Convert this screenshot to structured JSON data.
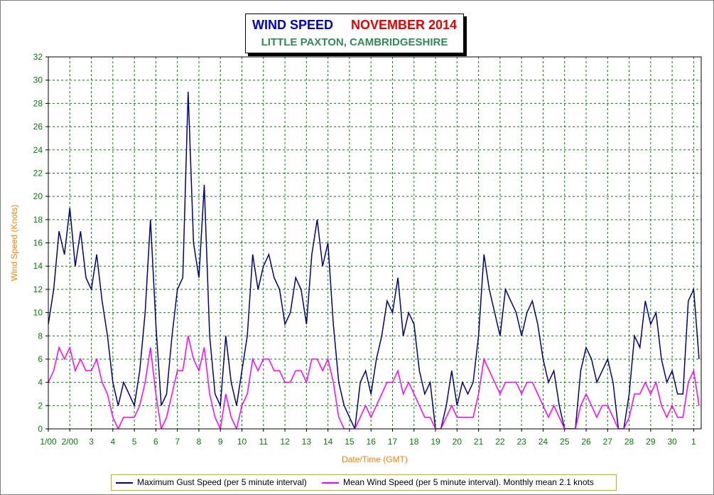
{
  "title": {
    "main": "WIND SPEED",
    "month": "NOVEMBER 2014",
    "location": "LITTLE PAXTON, CAMBRIDGESHIRE"
  },
  "colors": {
    "gust": "#000080",
    "mean": "#ff00ff",
    "grid": "#008000",
    "axis_label": "#ff8000",
    "tick_label": "#008000",
    "title_blue": "#0000cc",
    "title_red": "#e60000",
    "title_green": "#2e8b57"
  },
  "legend": {
    "gust": "Maximum Gust Speed (per 5 minute interval)",
    "mean": "Mean Wind Speed (per 5 minute interval). Monthly mean 2.1 knots"
  },
  "chart_data": {
    "type": "line",
    "xlabel": "Date/Time (GMT)",
    "ylabel": "Wind Speed (Knots)",
    "ylim": [
      0,
      32
    ],
    "y_ticks": [
      0,
      2,
      4,
      6,
      8,
      10,
      12,
      14,
      16,
      18,
      20,
      22,
      24,
      26,
      28,
      30,
      32
    ],
    "xlim": [
      1,
      31
    ],
    "x_tick_labels": [
      "1/00",
      "2/00",
      "3",
      "4",
      "5",
      "6",
      "7",
      "8",
      "9",
      "10",
      "11",
      "12",
      "13",
      "14",
      "15",
      "16",
      "17",
      "18",
      "19",
      "20",
      "21",
      "22",
      "23",
      "24",
      "25",
      "26",
      "27",
      "28",
      "29",
      "30",
      "1"
    ],
    "grid": true,
    "legend_position": "bottom",
    "series": [
      {
        "name": "Maximum Gust Speed (per 5 minute interval)",
        "x": [
          1.0,
          1.25,
          1.5,
          1.75,
          2.0,
          2.25,
          2.5,
          2.75,
          3.0,
          3.25,
          3.5,
          3.75,
          4.0,
          4.25,
          4.5,
          4.75,
          5.0,
          5.25,
          5.5,
          5.75,
          6.0,
          6.25,
          6.5,
          6.75,
          7.0,
          7.25,
          7.5,
          7.75,
          8.0,
          8.25,
          8.5,
          8.75,
          9.0,
          9.25,
          9.5,
          9.75,
          10.0,
          10.25,
          10.5,
          10.75,
          11.0,
          11.25,
          11.5,
          11.75,
          12.0,
          12.25,
          12.5,
          12.75,
          13.0,
          13.25,
          13.5,
          13.75,
          14.0,
          14.25,
          14.5,
          14.75,
          15.0,
          15.25,
          15.5,
          15.75,
          16.0,
          16.25,
          16.5,
          16.75,
          17.0,
          17.25,
          17.5,
          17.75,
          18.0,
          18.25,
          18.5,
          18.75,
          19.0,
          19.25,
          19.5,
          19.75,
          20.0,
          20.25,
          20.5,
          20.75,
          21.0,
          21.25,
          21.5,
          21.75,
          22.0,
          22.25,
          22.5,
          22.75,
          23.0,
          23.25,
          23.5,
          23.75,
          24.0,
          24.25,
          24.5,
          24.75,
          25.0,
          25.25,
          25.5,
          25.75,
          26.0,
          26.25,
          26.5,
          26.75,
          27.0,
          27.25,
          27.5,
          27.75,
          28.0,
          28.25,
          28.5,
          28.75,
          29.0,
          29.25,
          29.5,
          29.75,
          30.0,
          30.25,
          30.5,
          30.75,
          31.0,
          31.25
        ],
        "y": [
          9,
          12,
          17,
          15,
          19,
          14,
          17,
          13,
          12,
          15,
          11,
          8,
          4,
          2,
          4,
          3,
          2,
          5,
          10,
          18,
          9,
          2,
          3,
          8,
          12,
          13,
          29,
          16,
          13,
          21,
          8,
          3,
          2,
          8,
          4,
          2,
          5,
          8,
          15,
          12,
          14,
          15,
          13,
          12,
          9,
          10,
          13,
          12,
          9,
          15,
          18,
          14,
          16,
          9,
          4,
          2,
          1,
          0,
          4,
          5,
          3,
          6,
          8,
          11,
          10,
          13,
          8,
          10,
          9,
          5,
          3,
          4,
          0,
          0,
          2,
          5,
          2,
          4,
          3,
          4,
          8,
          15,
          12,
          10,
          8,
          12,
          11,
          10,
          8,
          10,
          11,
          9,
          6,
          4,
          5,
          2,
          0,
          0,
          0,
          5,
          7,
          6,
          4,
          5,
          6,
          4,
          0,
          0,
          3,
          8,
          7,
          11,
          9,
          10,
          6,
          4,
          5,
          3,
          3,
          11,
          12,
          6
        ]
      },
      {
        "name": "Mean Wind Speed (per 5 minute interval). Monthly mean 2.1 knots",
        "x": [
          1.0,
          1.25,
          1.5,
          1.75,
          2.0,
          2.25,
          2.5,
          2.75,
          3.0,
          3.25,
          3.5,
          3.75,
          4.0,
          4.25,
          4.5,
          4.75,
          5.0,
          5.25,
          5.5,
          5.75,
          6.0,
          6.25,
          6.5,
          6.75,
          7.0,
          7.25,
          7.5,
          7.75,
          8.0,
          8.25,
          8.5,
          8.75,
          9.0,
          9.25,
          9.5,
          9.75,
          10.0,
          10.25,
          10.5,
          10.75,
          11.0,
          11.25,
          11.5,
          11.75,
          12.0,
          12.25,
          12.5,
          12.75,
          13.0,
          13.25,
          13.5,
          13.75,
          14.0,
          14.25,
          14.5,
          14.75,
          15.0,
          15.25,
          15.5,
          15.75,
          16.0,
          16.25,
          16.5,
          16.75,
          17.0,
          17.25,
          17.5,
          17.75,
          18.0,
          18.25,
          18.5,
          18.75,
          19.0,
          19.25,
          19.5,
          19.75,
          20.0,
          20.25,
          20.5,
          20.75,
          21.0,
          21.25,
          21.5,
          21.75,
          22.0,
          22.25,
          22.5,
          22.75,
          23.0,
          23.25,
          23.5,
          23.75,
          24.0,
          24.25,
          24.5,
          24.75,
          25.0,
          25.25,
          25.5,
          25.75,
          26.0,
          26.25,
          26.5,
          26.75,
          27.0,
          27.25,
          27.5,
          27.75,
          28.0,
          28.25,
          28.5,
          28.75,
          29.0,
          29.25,
          29.5,
          29.75,
          30.0,
          30.25,
          30.5,
          30.75,
          31.0,
          31.25
        ],
        "y": [
          4,
          5,
          7,
          6,
          7,
          5,
          6,
          5,
          5,
          6,
          4,
          3,
          1,
          0,
          1,
          1,
          1,
          2,
          4,
          7,
          3,
          0,
          1,
          3,
          5,
          5,
          8,
          6,
          5,
          7,
          3,
          1,
          0,
          3,
          1,
          0,
          2,
          3,
          6,
          5,
          6,
          6,
          5,
          5,
          4,
          4,
          5,
          5,
          4,
          6,
          6,
          5,
          6,
          4,
          1,
          0,
          0,
          0,
          1,
          2,
          1,
          2,
          3,
          4,
          4,
          5,
          3,
          4,
          3,
          2,
          1,
          1,
          0,
          0,
          1,
          2,
          1,
          1,
          1,
          1,
          3,
          6,
          5,
          4,
          3,
          4,
          4,
          4,
          3,
          4,
          4,
          3,
          2,
          1,
          2,
          1,
          0,
          0,
          0,
          2,
          3,
          2,
          1,
          2,
          2,
          1,
          0,
          0,
          1,
          3,
          3,
          4,
          3,
          4,
          2,
          1,
          2,
          1,
          1,
          4,
          5,
          2
        ]
      }
    ]
  }
}
